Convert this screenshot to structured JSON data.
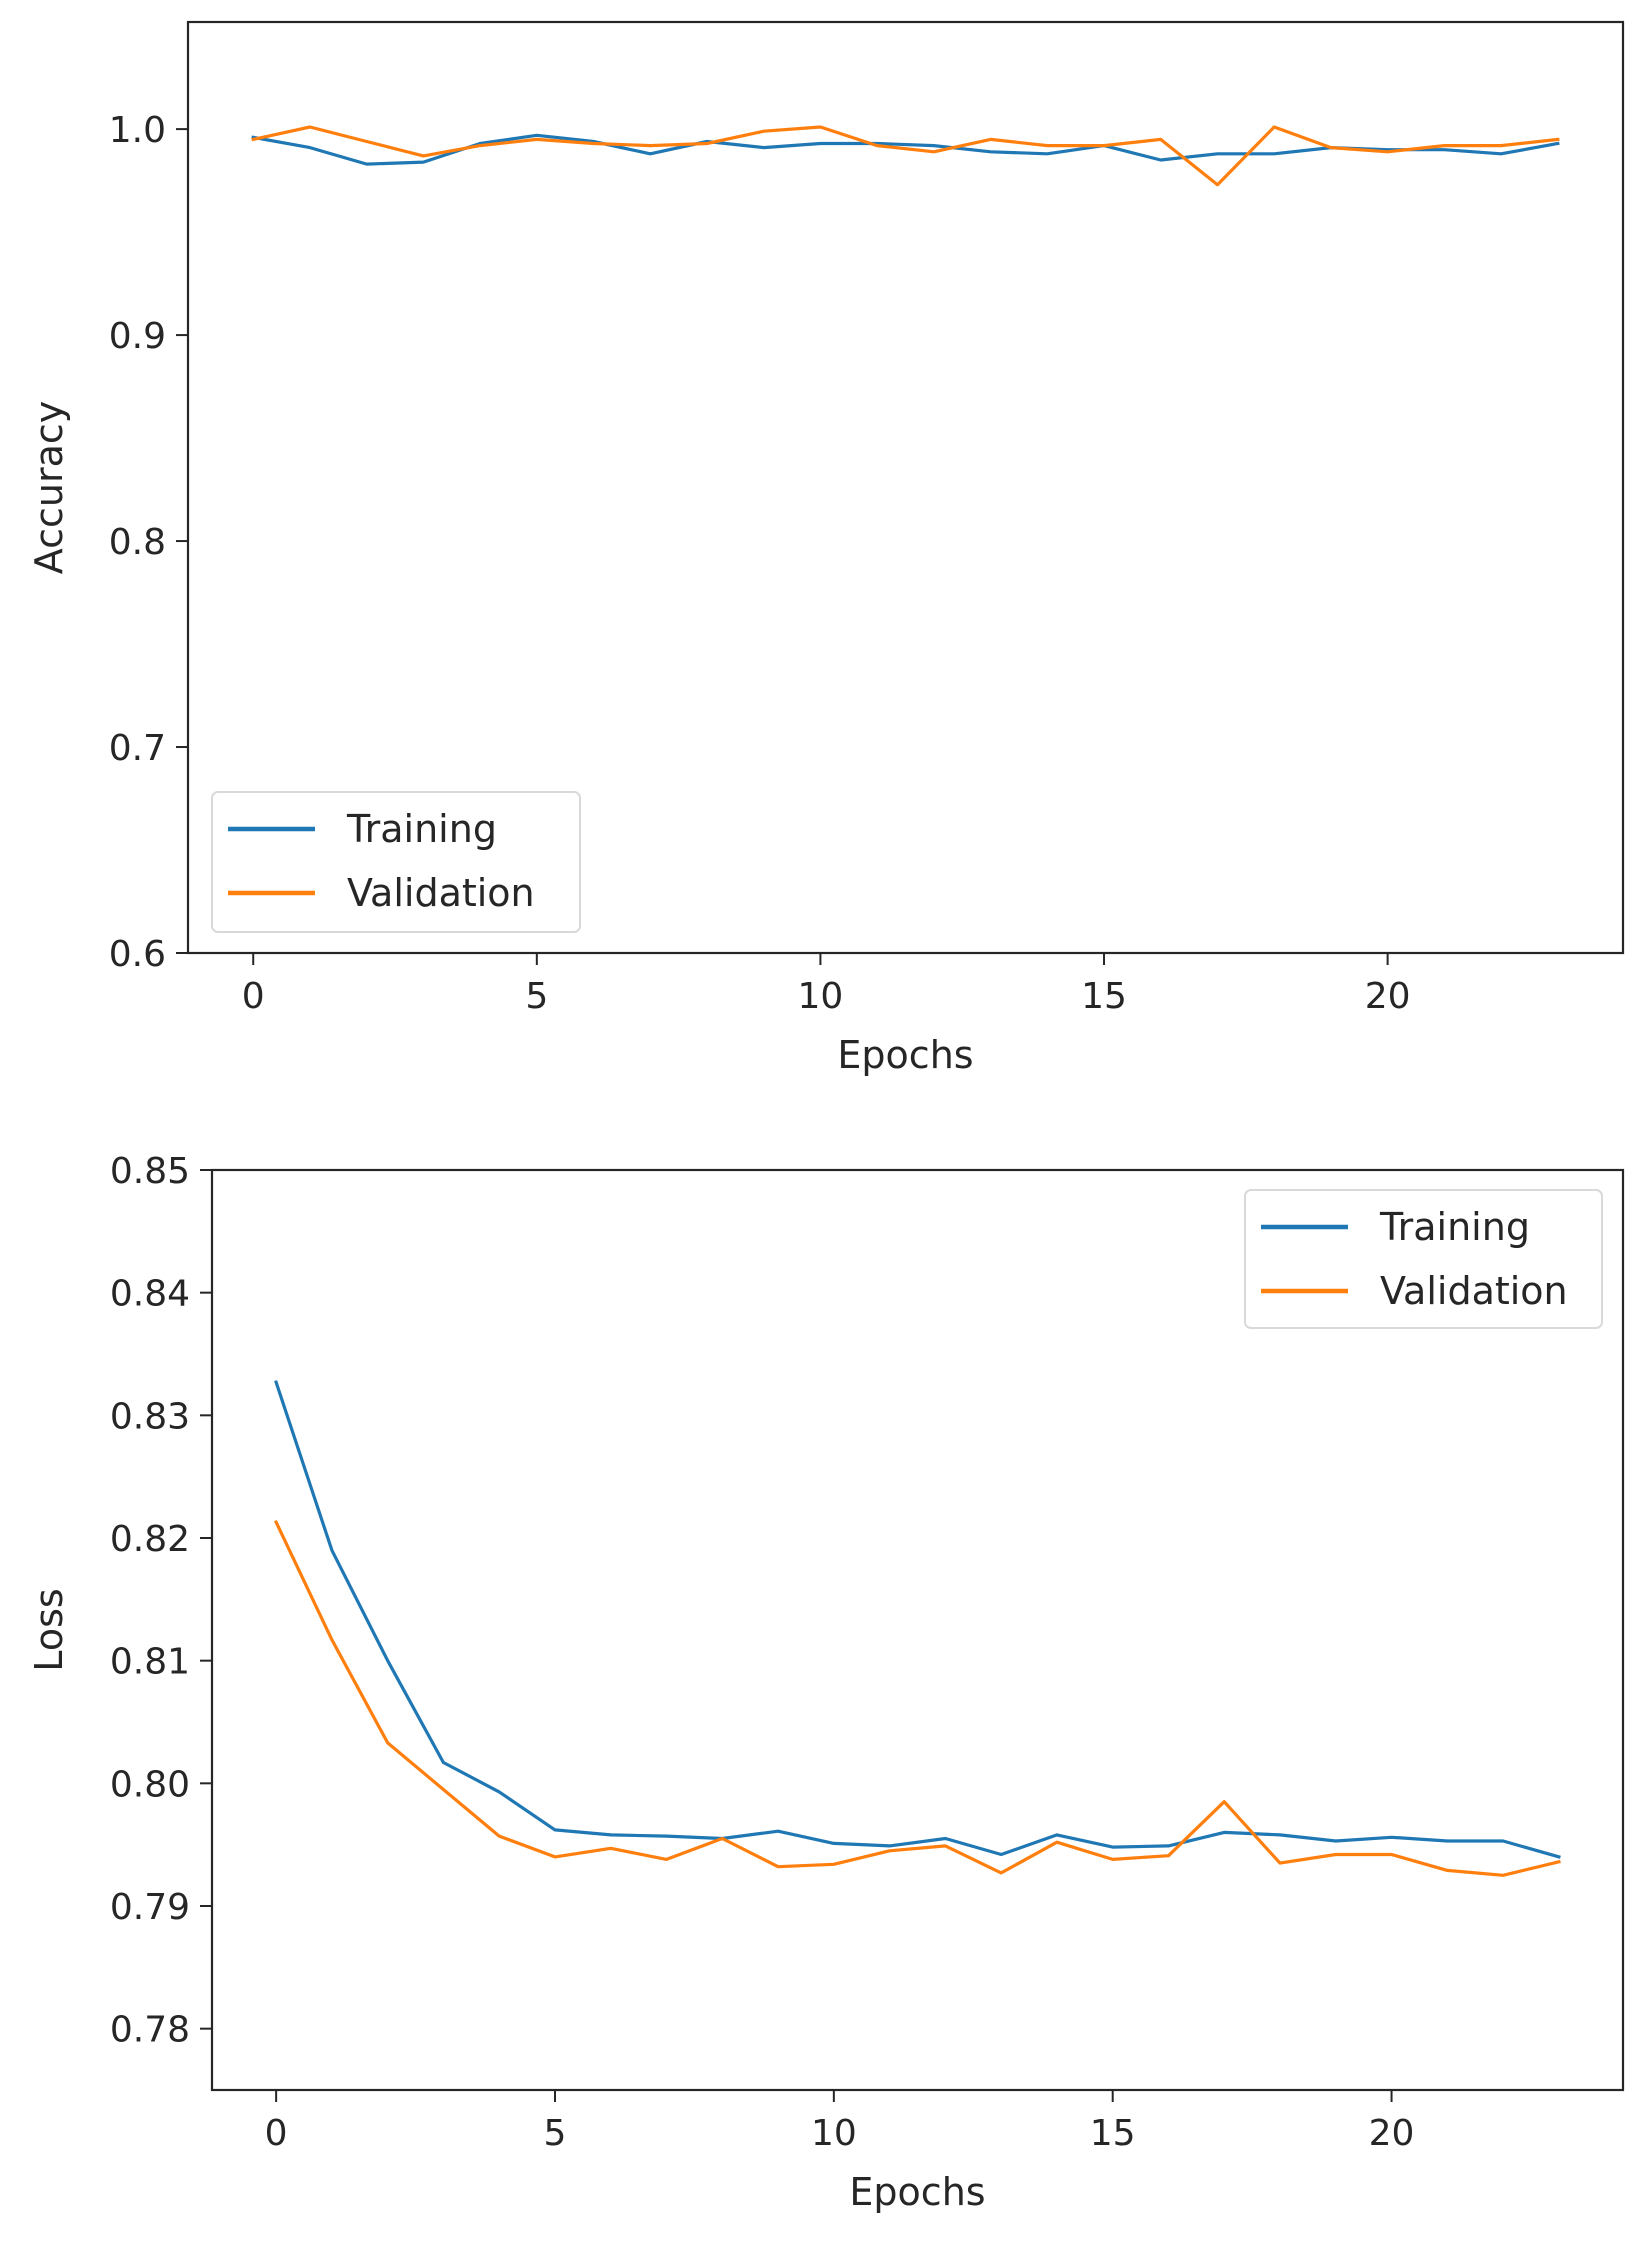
{
  "colors": {
    "training": "#1f77b4",
    "validation": "#ff7f0e",
    "axis": "#262626",
    "legend_border": "#d9d9d9"
  },
  "chart_data": [
    {
      "type": "line",
      "title": "",
      "xlabel": "Epochs",
      "ylabel": "Accuracy",
      "xlim": [
        -1.15,
        24.15
      ],
      "ylim": [
        0.6,
        1.052
      ],
      "xticks": [
        0,
        5,
        10,
        15,
        20
      ],
      "xtick_labels": [
        "0",
        "5",
        "10",
        "15",
        "20"
      ],
      "yticks": [
        0.6,
        0.7,
        0.8,
        0.9,
        1.0
      ],
      "ytick_labels": [
        "0.6",
        "0.7",
        "0.8",
        "0.9",
        "1.0"
      ],
      "grid": false,
      "legend_position": "lower-left",
      "x": [
        0,
        1,
        2,
        3,
        4,
        5,
        6,
        7,
        8,
        9,
        10,
        11,
        12,
        13,
        14,
        15,
        16,
        17,
        18,
        19,
        20,
        21,
        22,
        23
      ],
      "series": [
        {
          "name": "Training",
          "values": [
            0.996,
            0.991,
            0.983,
            0.984,
            0.993,
            0.997,
            0.994,
            0.988,
            0.994,
            0.991,
            0.993,
            0.993,
            0.992,
            0.989,
            0.988,
            0.992,
            0.985,
            0.988,
            0.988,
            0.991,
            0.99,
            0.99,
            0.988,
            0.993
          ]
        },
        {
          "name": "Validation",
          "values": [
            0.995,
            1.001,
            0.994,
            0.987,
            0.992,
            0.995,
            0.993,
            0.992,
            0.993,
            0.999,
            1.001,
            0.992,
            0.989,
            0.995,
            0.992,
            0.992,
            0.995,
            0.973,
            1.001,
            0.991,
            0.989,
            0.992,
            0.992,
            0.995
          ]
        }
      ]
    },
    {
      "type": "line",
      "title": "",
      "xlabel": "Epochs",
      "ylabel": "Loss",
      "xlim": [
        -1.15,
        24.15
      ],
      "ylim": [
        0.775,
        0.85
      ],
      "xticks": [
        0,
        5,
        10,
        15,
        20
      ],
      "xtick_labels": [
        "0",
        "5",
        "10",
        "15",
        "20"
      ],
      "yticks": [
        0.78,
        0.79,
        0.8,
        0.81,
        0.82,
        0.83,
        0.84,
        0.85
      ],
      "ytick_labels": [
        "0.78",
        "0.79",
        "0.80",
        "0.81",
        "0.82",
        "0.83",
        "0.84",
        "0.85"
      ],
      "grid": false,
      "legend_position": "upper-right",
      "x": [
        0,
        1,
        2,
        3,
        4,
        5,
        6,
        7,
        8,
        9,
        10,
        11,
        12,
        13,
        14,
        15,
        16,
        17,
        18,
        19,
        20,
        21,
        22,
        23
      ],
      "series": [
        {
          "name": "Training",
          "values": [
            0.8327,
            0.819,
            0.81,
            0.8017,
            0.7993,
            0.7962,
            0.7958,
            0.7957,
            0.7955,
            0.7961,
            0.7951,
            0.7949,
            0.7955,
            0.7942,
            0.7958,
            0.7948,
            0.7949,
            0.796,
            0.7958,
            0.7953,
            0.7956,
            0.7953,
            0.7953,
            0.794
          ]
        },
        {
          "name": "Validation",
          "values": [
            0.8213,
            0.8117,
            0.8033,
            0.7995,
            0.7957,
            0.794,
            0.7947,
            0.7938,
            0.7955,
            0.7932,
            0.7934,
            0.7945,
            0.7949,
            0.7927,
            0.7952,
            0.7938,
            0.7941,
            0.7985,
            0.7935,
            0.7942,
            0.7942,
            0.7929,
            0.7925,
            0.7936
          ]
        }
      ]
    }
  ]
}
